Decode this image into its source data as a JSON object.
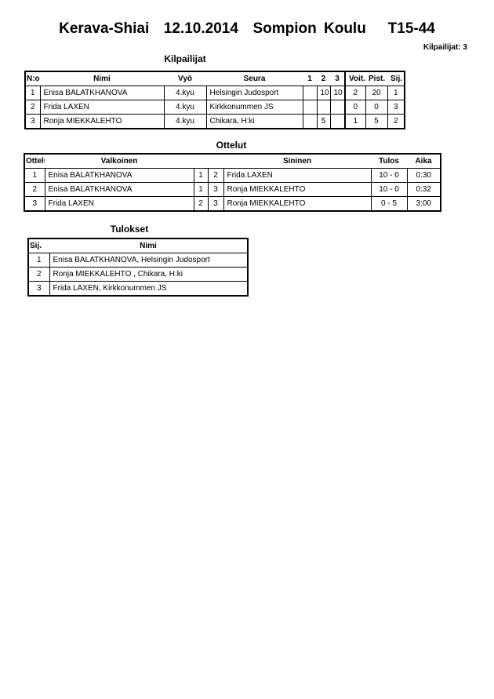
{
  "title": "Kerava-Shiai  12.10.2014  Sompion Koulu   T15-44",
  "competitor_count": "Kilpailijat: 3",
  "competitors": {
    "heading": "Kilpailijat",
    "columns": [
      "N:o",
      "Nimi",
      "Vyö",
      "Seura",
      "1",
      "2",
      "3",
      "Voit.",
      "Pist.",
      "Sij."
    ],
    "rows": [
      [
        "1",
        "Enisa BALATKHANOVA",
        "4.kyu",
        "Helsingin Judosport",
        "",
        "10",
        "10",
        "2",
        "20",
        "1"
      ],
      [
        "2",
        "Frida LAXEN",
        "4.kyu",
        "Kirkkonummen JS",
        "",
        "",
        "",
        "0",
        "0",
        "3"
      ],
      [
        "3",
        "Ronja MIEKKALEHTO",
        "4.kyu",
        "Chikara, H:ki",
        "",
        "5",
        "",
        "1",
        "5",
        "2"
      ]
    ]
  },
  "matches": {
    "heading": "Ottelut",
    "columns": [
      "Ottelu",
      "Valkoinen",
      "",
      "",
      "Sininen",
      "Tulos",
      "Aika"
    ],
    "rows": [
      [
        "1",
        "Enisa BALATKHANOVA",
        "1",
        "2",
        "Frida LAXEN",
        "10 - 0",
        "0:30"
      ],
      [
        "2",
        "Enisa BALATKHANOVA",
        "1",
        "3",
        "Ronja MIEKKALEHTO",
        "10 - 0",
        "0:32"
      ],
      [
        "3",
        "Frida LAXEN",
        "2",
        "3",
        "Ronja MIEKKALEHTO",
        "0 - 5",
        "3:00"
      ]
    ]
  },
  "results": {
    "heading": "Tulokset",
    "columns": [
      "Sij.",
      "Nimi"
    ],
    "rows": [
      [
        "1",
        "Enisa BALATKHANOVA, Helsingin Judosport"
      ],
      [
        "2",
        "Ronja MIEKKALEHTO , Chikara, H:ki"
      ],
      [
        "3",
        "Frida LAXEN, Kirkkonummen JS"
      ]
    ]
  }
}
